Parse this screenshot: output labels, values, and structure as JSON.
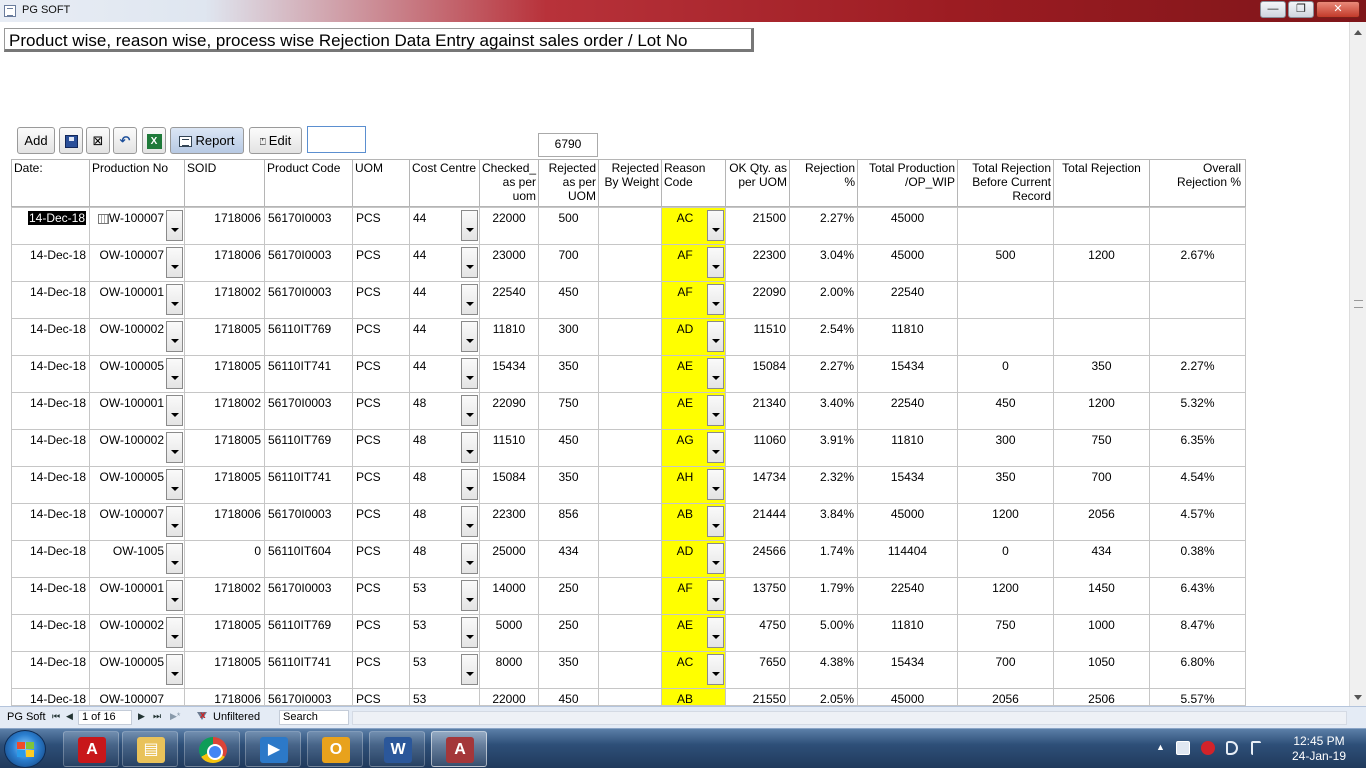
{
  "window": {
    "title": "PG SOFT",
    "minimize": "—",
    "maximize": "❐",
    "close": "✕"
  },
  "form": {
    "heading": "Product wise, reason wise, process wise Rejection Data Entry against sales order / Lot No"
  },
  "toolbar": {
    "add_label": "Add",
    "delete_glyph": "⊠",
    "undo_glyph": "↶",
    "excel_glyph": "X",
    "report_label": "Report",
    "edit_glyph": "⍞",
    "edit_label": "Edit",
    "total_value": "6790"
  },
  "columns": {
    "date": "Date:",
    "production_no": "Production No",
    "soid": "SOID",
    "product_code": "Product Code",
    "uom": "UOM",
    "cost_centre": "Cost Centre",
    "checked": "Checked_ as per uom",
    "rejected": "Rejected as per UOM",
    "rejected_weight": "Rejected By Weight",
    "reason_code": "Reason Code",
    "ok_qty": "OK Qty. as per UOM",
    "rejection_pct": "Rejection %",
    "total_production": "Total Production /OP_WIP",
    "total_rejection_before": "Total Rejection Before Current Record",
    "total_rejection": "Total Rejection",
    "overall_rejection": "Overall Rejection %"
  },
  "rows": [
    {
      "date": "14-Dec-18",
      "prod": "W-100007",
      "soid": "1718006",
      "code": "56170I0003",
      "uom": "PCS",
      "cc": "44",
      "checked": "22000",
      "rejected": "500",
      "weight": "",
      "reason": "AC",
      "ok": "21500",
      "pct": "2.27%",
      "total_prod": "45000",
      "rej_before": "",
      "total_rej": "",
      "overall": ""
    },
    {
      "date": "14-Dec-18",
      "prod": "OW-100007",
      "soid": "1718006",
      "code": "56170I0003",
      "uom": "PCS",
      "cc": "44",
      "checked": "23000",
      "rejected": "700",
      "weight": "",
      "reason": "AF",
      "ok": "22300",
      "pct": "3.04%",
      "total_prod": "45000",
      "rej_before": "500",
      "total_rej": "1200",
      "overall": "2.67%"
    },
    {
      "date": "14-Dec-18",
      "prod": "OW-100001",
      "soid": "1718002",
      "code": "56170I0003",
      "uom": "PCS",
      "cc": "44",
      "checked": "22540",
      "rejected": "450",
      "weight": "",
      "reason": "AF",
      "ok": "22090",
      "pct": "2.00%",
      "total_prod": "22540",
      "rej_before": "",
      "total_rej": "",
      "overall": ""
    },
    {
      "date": "14-Dec-18",
      "prod": "OW-100002",
      "soid": "1718005",
      "code": "56110IT769",
      "uom": "PCS",
      "cc": "44",
      "checked": "11810",
      "rejected": "300",
      "weight": "",
      "reason": "AD",
      "ok": "11510",
      "pct": "2.54%",
      "total_prod": "11810",
      "rej_before": "",
      "total_rej": "",
      "overall": ""
    },
    {
      "date": "14-Dec-18",
      "prod": "OW-100005",
      "soid": "1718005",
      "code": "56110IT741",
      "uom": "PCS",
      "cc": "44",
      "checked": "15434",
      "rejected": "350",
      "weight": "",
      "reason": "AE",
      "ok": "15084",
      "pct": "2.27%",
      "total_prod": "15434",
      "rej_before": "0",
      "total_rej": "350",
      "overall": "2.27%"
    },
    {
      "date": "14-Dec-18",
      "prod": "OW-100001",
      "soid": "1718002",
      "code": "56170I0003",
      "uom": "PCS",
      "cc": "48",
      "checked": "22090",
      "rejected": "750",
      "weight": "",
      "reason": "AE",
      "ok": "21340",
      "pct": "3.40%",
      "total_prod": "22540",
      "rej_before": "450",
      "total_rej": "1200",
      "overall": "5.32%"
    },
    {
      "date": "14-Dec-18",
      "prod": "OW-100002",
      "soid": "1718005",
      "code": "56110IT769",
      "uom": "PCS",
      "cc": "48",
      "checked": "11510",
      "rejected": "450",
      "weight": "",
      "reason": "AG",
      "ok": "11060",
      "pct": "3.91%",
      "total_prod": "11810",
      "rej_before": "300",
      "total_rej": "750",
      "overall": "6.35%"
    },
    {
      "date": "14-Dec-18",
      "prod": "OW-100005",
      "soid": "1718005",
      "code": "56110IT741",
      "uom": "PCS",
      "cc": "48",
      "checked": "15084",
      "rejected": "350",
      "weight": "",
      "reason": "AH",
      "ok": "14734",
      "pct": "2.32%",
      "total_prod": "15434",
      "rej_before": "350",
      "total_rej": "700",
      "overall": "4.54%"
    },
    {
      "date": "14-Dec-18",
      "prod": "OW-100007",
      "soid": "1718006",
      "code": "56170I0003",
      "uom": "PCS",
      "cc": "48",
      "checked": "22300",
      "rejected": "856",
      "weight": "",
      "reason": "AB",
      "ok": "21444",
      "pct": "3.84%",
      "total_prod": "45000",
      "rej_before": "1200",
      "total_rej": "2056",
      "overall": "4.57%"
    },
    {
      "date": "14-Dec-18",
      "prod": "OW-1005",
      "soid": "0",
      "code": "56110IT604",
      "uom": "PCS",
      "cc": "48",
      "checked": "25000",
      "rejected": "434",
      "weight": "",
      "reason": "AD",
      "ok": "24566",
      "pct": "1.74%",
      "total_prod": "114404",
      "rej_before": "0",
      "total_rej": "434",
      "overall": "0.38%"
    },
    {
      "date": "14-Dec-18",
      "prod": "OW-100001",
      "soid": "1718002",
      "code": "56170I0003",
      "uom": "PCS",
      "cc": "53",
      "checked": "14000",
      "rejected": "250",
      "weight": "",
      "reason": "AF",
      "ok": "13750",
      "pct": "1.79%",
      "total_prod": "22540",
      "rej_before": "1200",
      "total_rej": "1450",
      "overall": "6.43%"
    },
    {
      "date": "14-Dec-18",
      "prod": "OW-100002",
      "soid": "1718005",
      "code": "56110IT769",
      "uom": "PCS",
      "cc": "53",
      "checked": "5000",
      "rejected": "250",
      "weight": "",
      "reason": "AE",
      "ok": "4750",
      "pct": "5.00%",
      "total_prod": "11810",
      "rej_before": "750",
      "total_rej": "1000",
      "overall": "8.47%"
    },
    {
      "date": "14-Dec-18",
      "prod": "OW-100005",
      "soid": "1718005",
      "code": "56110IT741",
      "uom": "PCS",
      "cc": "53",
      "checked": "8000",
      "rejected": "350",
      "weight": "",
      "reason": "AC",
      "ok": "7650",
      "pct": "4.38%",
      "total_prod": "15434",
      "rej_before": "700",
      "total_rej": "1050",
      "overall": "6.80%"
    },
    {
      "date": "14-Dec-18",
      "prod": "OW-100007",
      "soid": "1718006",
      "code": "56170I0003",
      "uom": "PCS",
      "cc": "53",
      "checked": "22000",
      "rejected": "450",
      "weight": "",
      "reason": "AB",
      "ok": "21550",
      "pct": "2.05%",
      "total_prod": "45000",
      "rej_before": "2056",
      "total_rej": "2506",
      "overall": "5.57%"
    }
  ],
  "navigation": {
    "form_label": "PG Soft",
    "first": "⏮",
    "prev": "◀",
    "record": "1 of 16",
    "next": "▶",
    "last": "⏭",
    "new_record": "▶*",
    "filter_label": "Unfiltered",
    "search_label": "Search"
  },
  "taskbar": {
    "apps": [
      {
        "name": "acrobat",
        "glyph": "A"
      },
      {
        "name": "explorer",
        "glyph": "▤"
      },
      {
        "name": "chrome",
        "glyph": ""
      },
      {
        "name": "media",
        "glyph": "▶"
      },
      {
        "name": "outlook",
        "glyph": "O"
      },
      {
        "name": "word",
        "glyph": "W"
      },
      {
        "name": "access",
        "glyph": "A"
      }
    ],
    "tray_caret": "▲",
    "clock_time": "12:45 PM",
    "clock_date": "24-Jan-19"
  },
  "colors": {
    "reason_highlight": "#ffff00",
    "title_gradient_end": "#7e1519",
    "taskbar": "#2e4f78"
  }
}
